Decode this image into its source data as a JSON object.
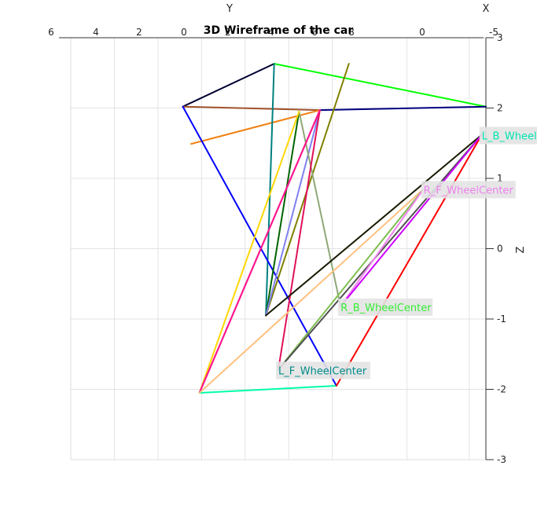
{
  "chart_data": {
    "type": "line",
    "title": "3D Wireframe of the car",
    "axis_letters": {
      "y": "Y",
      "x": "X",
      "z": "Z"
    },
    "top_ticks": [
      "6",
      "4",
      "2",
      "0",
      "2",
      "4",
      "6",
      "8",
      "0",
      "-5"
    ],
    "z_ticks": [
      "3",
      "2",
      "1",
      "0",
      "-1",
      "-2",
      "-3"
    ],
    "z_values": [
      3,
      2,
      1,
      0,
      -1,
      -2,
      -3
    ],
    "zlim": [
      -3,
      3
    ],
    "grid": true,
    "points": {
      "apex": [
        0.49,
        2.63
      ],
      "left_top": [
        0.27,
        2.02
      ],
      "right_top": [
        1.0,
        2.02
      ],
      "mid_top": [
        0.6,
        1.97
      ],
      "mid_top2": [
        0.55,
        1.95
      ],
      "olive_top": [
        0.67,
        2.63
      ],
      "orange_end": [
        0.29,
        1.49
      ],
      "lb_wheel": [
        0.99,
        1.62
      ],
      "rf_wheel": [
        0.85,
        0.85
      ],
      "rb_wheel": [
        0.65,
        -0.82
      ],
      "lf_wheel": [
        0.5,
        -1.72
      ],
      "center_low": [
        0.47,
        -0.95
      ],
      "bottom_left": [
        0.31,
        -2.05
      ],
      "bottom_right": [
        0.64,
        -1.95
      ]
    },
    "segments": [
      {
        "from": "left_top",
        "to": "apex",
        "color": "#000033"
      },
      {
        "from": "apex",
        "to": "right_top",
        "color": "#00ff00"
      },
      {
        "from": "left_top",
        "to": "mid_top",
        "color": "#a0522d"
      },
      {
        "from": "mid_top",
        "to": "right_top",
        "color": "#000080"
      },
      {
        "from": "orange_end",
        "to": "mid_top",
        "color": "#f08010"
      },
      {
        "from": "apex",
        "to": "center_low",
        "color": "#008080"
      },
      {
        "from": "left_top",
        "to": "bottom_right",
        "color": "#0000ff"
      },
      {
        "from": "center_low",
        "to": "olive_top",
        "color": "#808000"
      },
      {
        "from": "center_low",
        "to": "mid_top2",
        "color": "#006400"
      },
      {
        "from": "center_low",
        "to": "mid_top",
        "color": "#8080f0"
      },
      {
        "from": "mid_top2",
        "to": "rb_wheel",
        "color": "#8fa876"
      },
      {
        "from": "bottom_left",
        "to": "mid_top2",
        "color": "#ffd700"
      },
      {
        "from": "bottom_left",
        "to": "mid_top",
        "color": "#dc143c"
      },
      {
        "from": "lf_wheel",
        "to": "mid_top",
        "color": "#e0105a"
      },
      {
        "from": "bottom_left",
        "to": "mid_top",
        "color": "#ff1493"
      },
      {
        "from": "bottom_left",
        "to": "bottom_right",
        "color": "#00ffaa"
      },
      {
        "from": "bottom_right",
        "to": "lb_wheel",
        "color": "#ff0000"
      },
      {
        "from": "center_low",
        "to": "lb_wheel",
        "color": "#1a1a00"
      },
      {
        "from": "bottom_left",
        "to": "rf_wheel",
        "color": "#ffc080"
      },
      {
        "from": "lf_wheel",
        "to": "rf_wheel",
        "color": "#7fbf50"
      },
      {
        "from": "lf_wheel",
        "to": "lb_wheel",
        "color": "#505050"
      },
      {
        "from": "rb_wheel",
        "to": "rf_wheel",
        "color": "#ee82ee"
      },
      {
        "from": "rb_wheel",
        "to": "lb_wheel",
        "color": "#cc00ff"
      }
    ],
    "labels": [
      {
        "text": "L_B_WheelCenter",
        "at": "lb_wheel",
        "color": "#00e5b0"
      },
      {
        "text": "R_F_WheelCenter",
        "at": "rf_wheel",
        "color": "#ee82ee"
      },
      {
        "text": "R_B_WheelCenter",
        "at": "rb_wheel",
        "color": "#33ee33"
      },
      {
        "text": "L_F_WheelCenter",
        "at": "lf_wheel",
        "color": "#008b8b"
      }
    ]
  }
}
